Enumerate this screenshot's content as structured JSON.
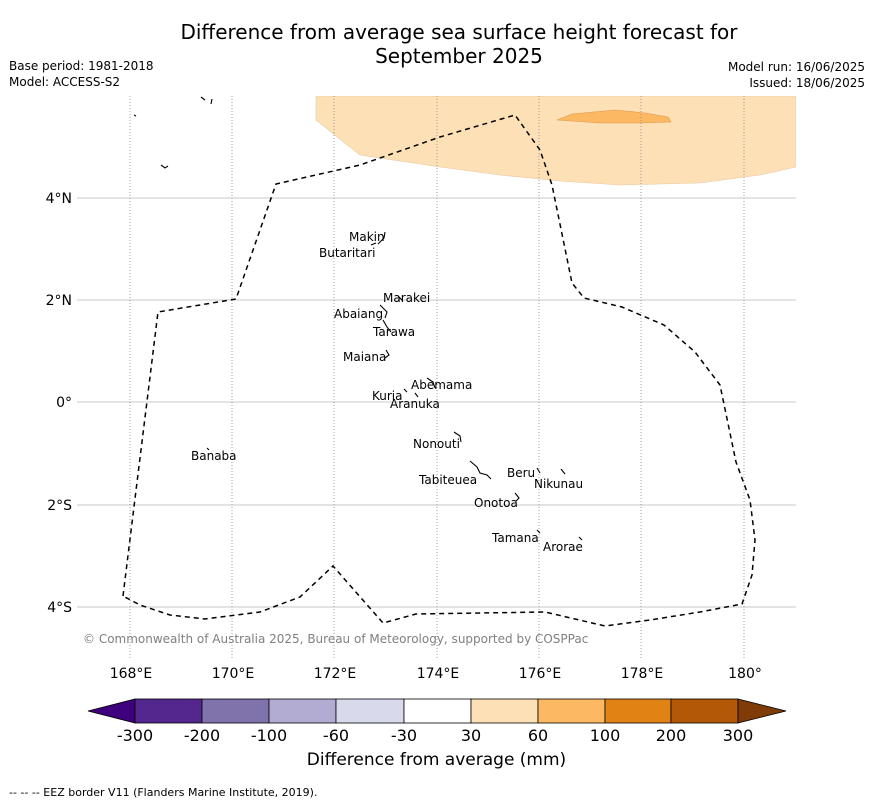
{
  "header": {
    "title_line1": "Difference from average sea surface height forecast for",
    "title_line2": "September 2025",
    "base_period": "Base period: 1981-2018",
    "model": "Model: ACCESS-S2",
    "model_run": "Model run: 16/06/2025",
    "issued": "Issued: 18/06/2025"
  },
  "map": {
    "lon_ticks": [
      "168°E",
      "170°E",
      "172°E",
      "174°E",
      "176°E",
      "178°E",
      "180°"
    ],
    "lat_ticks": [
      "4°N",
      "2°N",
      "0°",
      "2°S",
      "4°S"
    ],
    "islands": {
      "makin": "Makin",
      "butaritari": "Butaritari",
      "marakei": "Marakei",
      "abaiang": "Abaiang",
      "tarawa": "Tarawa",
      "maiana": "Maiana",
      "abemama": "Abemama",
      "kuria": "Kuria",
      "aranuka": "Aranuka",
      "nonouti": "Nonouti",
      "banaba": "Banaba",
      "beru": "Beru",
      "nikunau": "Nikunau",
      "tabiteuea": "Tabiteuea",
      "onotoa": "Onotoa",
      "tamana": "Tamana",
      "arorae": "Arorae"
    },
    "copyright": "© Commonwealth of Australia 2025, Bureau of Meteorology, supported by COSPPac"
  },
  "colorbar": {
    "title": "Difference from average (mm)",
    "tick_labels": [
      "-300",
      "-200",
      "-100",
      "-60",
      "-30",
      "30",
      "60",
      "100",
      "200",
      "300"
    ],
    "colors": [
      "#3f007d",
      "#54278f",
      "#8073ac",
      "#b2abd2",
      "#d8daeb",
      "#ffffff",
      "#fee0b6",
      "#fdb863",
      "#e08214",
      "#b35806",
      "#7f3b08"
    ]
  },
  "footer": {
    "eez_note": "--  --  -- EEZ border V11 (Flanders Marine Institute, 2019)."
  }
}
